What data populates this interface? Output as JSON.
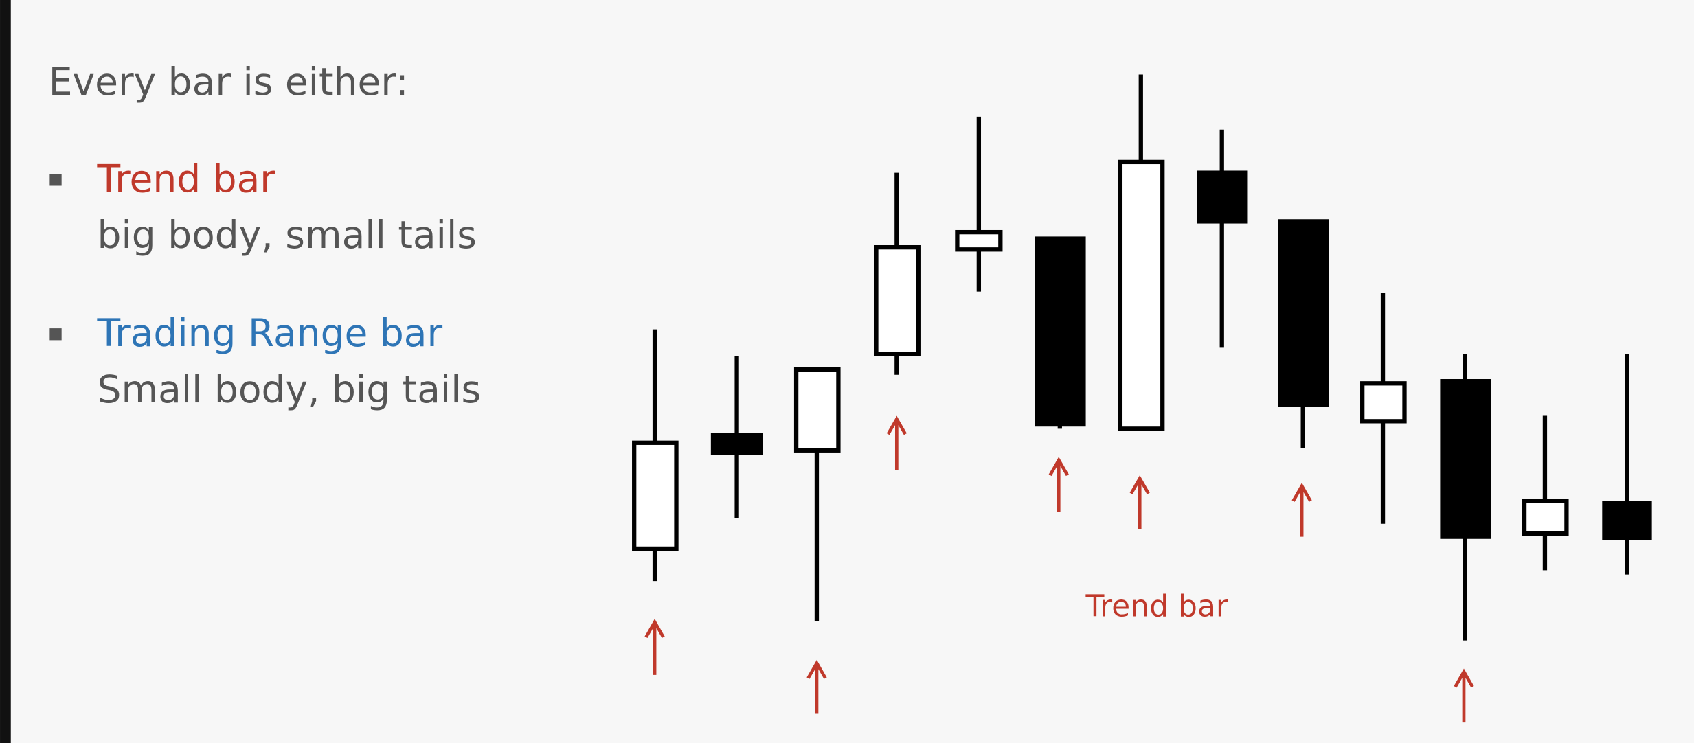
{
  "heading": "Every bar is either:",
  "bullets": [
    {
      "title": "Trend bar",
      "description": "big body, small tails"
    },
    {
      "title": "Trading Range bar",
      "description": "Small body, big tails"
    }
  ],
  "annotation": "Trend bar"
}
